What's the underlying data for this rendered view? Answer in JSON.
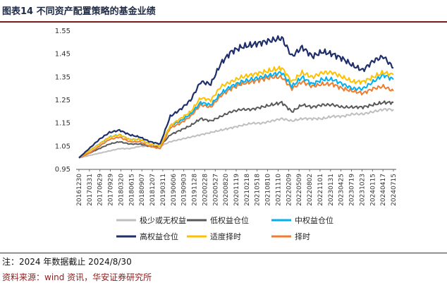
{
  "title": "图表14 不同资产配置策略的基金业绩",
  "note": "注：2024 年数据截止 2024/8/30",
  "source": "资料来源：wind 资讯，华安证券研究所",
  "chart_data": {
    "type": "line",
    "title": "图表14 不同资产配置策略的基金业绩",
    "xlabel": "",
    "ylabel": "",
    "ylim": [
      0.95,
      1.55
    ],
    "yticks": [
      0.95,
      1.05,
      1.15,
      1.25,
      1.35,
      1.45,
      1.55
    ],
    "grid": false,
    "legend_position": "bottom",
    "x_tick_labels": [
      "20161230",
      "20170331",
      "20170629",
      "20170929",
      "20180320",
      "20180615",
      "20180907",
      "20181207",
      "20190311",
      "20190606",
      "20190903",
      "20191128",
      "20200228",
      "20200527",
      "20200820",
      "20201119",
      "20210218",
      "20210518",
      "20210810",
      "20211110",
      "20220209",
      "20220509",
      "20220802",
      "20221101",
      "20230131",
      "20230425",
      "20230719",
      "20231023",
      "20240115",
      "20240417",
      "20240715"
    ],
    "x": [
      "2016-12",
      "2017-03",
      "2017-06",
      "2017-09",
      "2017-12",
      "2018-03",
      "2018-06",
      "2018-09",
      "2018-12",
      "2019-03",
      "2019-06",
      "2019-09",
      "2019-12",
      "2020-03",
      "2020-06",
      "2020-09",
      "2020-12",
      "2021-03",
      "2021-06",
      "2021-09",
      "2021-12",
      "2022-03",
      "2022-06",
      "2022-09",
      "2022-12",
      "2023-03",
      "2023-06",
      "2023-09",
      "2023-12",
      "2024-03",
      "2024-06",
      "2024-08"
    ],
    "series": [
      {
        "name": "极少或无权益",
        "color": "#bfbfbf",
        "values": [
          1.0,
          1.01,
          1.02,
          1.03,
          1.04,
          1.04,
          1.05,
          1.05,
          1.05,
          1.07,
          1.08,
          1.09,
          1.1,
          1.11,
          1.12,
          1.13,
          1.14,
          1.15,
          1.15,
          1.16,
          1.17,
          1.16,
          1.17,
          1.17,
          1.17,
          1.18,
          1.18,
          1.19,
          1.19,
          1.2,
          1.21,
          1.21
        ]
      },
      {
        "name": "低权益仓位",
        "color": "#595959",
        "values": [
          1.0,
          1.02,
          1.04,
          1.06,
          1.07,
          1.06,
          1.06,
          1.05,
          1.05,
          1.1,
          1.12,
          1.14,
          1.17,
          1.16,
          1.18,
          1.2,
          1.21,
          1.21,
          1.22,
          1.23,
          1.24,
          1.2,
          1.23,
          1.22,
          1.23,
          1.23,
          1.22,
          1.22,
          1.22,
          1.23,
          1.24,
          1.24
        ]
      },
      {
        "name": "中权益仓位",
        "color": "#00b0f0",
        "values": [
          1.0,
          1.03,
          1.06,
          1.09,
          1.1,
          1.08,
          1.08,
          1.06,
          1.05,
          1.14,
          1.16,
          1.19,
          1.24,
          1.23,
          1.28,
          1.31,
          1.33,
          1.34,
          1.35,
          1.36,
          1.37,
          1.31,
          1.35,
          1.32,
          1.34,
          1.34,
          1.32,
          1.3,
          1.3,
          1.33,
          1.36,
          1.34
        ]
      },
      {
        "name": "高权益仓位",
        "color": "#1f2f6b",
        "values": [
          1.0,
          1.04,
          1.08,
          1.11,
          1.12,
          1.1,
          1.09,
          1.07,
          1.06,
          1.18,
          1.21,
          1.25,
          1.33,
          1.32,
          1.41,
          1.46,
          1.48,
          1.49,
          1.5,
          1.51,
          1.52,
          1.44,
          1.48,
          1.44,
          1.46,
          1.45,
          1.43,
          1.4,
          1.38,
          1.42,
          1.44,
          1.39
        ]
      },
      {
        "name": "适度择时",
        "color": "#ffc000",
        "values": [
          1.0,
          1.03,
          1.06,
          1.09,
          1.1,
          1.08,
          1.08,
          1.06,
          1.05,
          1.14,
          1.17,
          1.2,
          1.26,
          1.25,
          1.31,
          1.33,
          1.35,
          1.36,
          1.37,
          1.38,
          1.39,
          1.33,
          1.37,
          1.35,
          1.37,
          1.37,
          1.35,
          1.33,
          1.33,
          1.35,
          1.37,
          1.36
        ]
      },
      {
        "name": "择时",
        "color": "#ed7d31",
        "values": [
          1.0,
          1.02,
          1.05,
          1.08,
          1.09,
          1.07,
          1.07,
          1.05,
          1.04,
          1.13,
          1.15,
          1.18,
          1.23,
          1.22,
          1.27,
          1.3,
          1.32,
          1.33,
          1.34,
          1.35,
          1.35,
          1.3,
          1.33,
          1.31,
          1.32,
          1.32,
          1.3,
          1.29,
          1.28,
          1.3,
          1.31,
          1.29
        ]
      }
    ]
  }
}
